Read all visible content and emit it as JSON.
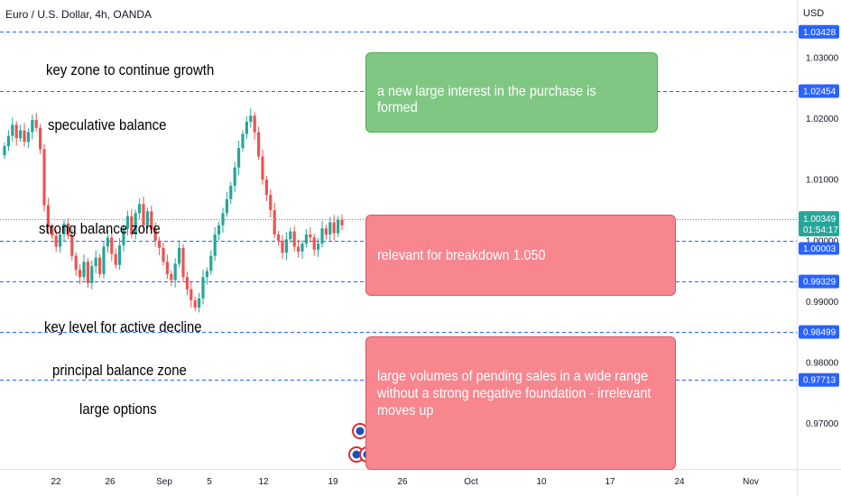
{
  "header": {
    "symbol_title": "Euro / U.S. Dollar, 4h, OANDA",
    "currency": "USD"
  },
  "colors": {
    "up": "#26a69a",
    "down": "#ef5350",
    "level_line": "#2962ff",
    "level_tag_bg": "#2962ff",
    "price_tag_bg": "#26a69a",
    "axis_text": "#131722",
    "green_note": "#81c784",
    "red_note": "#f7868f"
  },
  "chart_data": {
    "type": "candlestick",
    "x_tick_labels": [
      "22",
      "26",
      "Sep",
      "5",
      "12",
      "19",
      "26",
      "Oct",
      "10",
      "17",
      "24",
      "Nov"
    ],
    "y_tick_labels": [
      "1.03000",
      "1.02000",
      "1.01000",
      "1.00000",
      "0.99000",
      "0.98000",
      "0.97000"
    ],
    "ylim": [
      0.9625,
      1.0395
    ],
    "price_levels": [
      "1.03428",
      "1.02454",
      "0.99329",
      "0.98499",
      "0.97713"
    ],
    "current_price": "1.00349",
    "current_level": 1.00349,
    "countdown": "01:54:17",
    "support_price": "1.00003",
    "support_level": 1.00003,
    "annotations": [
      {
        "text": "key zone to continue growth",
        "price": 1.0305
      },
      {
        "text": "speculative balance",
        "price": 1.0212
      },
      {
        "text": "strong balance zone",
        "price": 1.0066
      },
      {
        "text": "key level for active decline",
        "price": 0.9886
      },
      {
        "text": "principal balance zone",
        "price": 0.9814
      },
      {
        "text": "large options",
        "price": 0.9747
      }
    ],
    "notes": [
      {
        "text": "a new large interest in the purchase is formed",
        "tone": "green"
      },
      {
        "text": "relevant for breakdown 1.050",
        "tone": "red"
      },
      {
        "text": "large volumes of pending sales in a wide range without a strong negative foundation - irrelevant moves up",
        "tone": "red"
      }
    ],
    "closes": [
      1.0155,
      1.0172,
      1.019,
      1.0168,
      1.0181,
      1.0162,
      1.0178,
      1.0198,
      1.0185,
      1.015,
      1.0058,
      1.0022,
      1.0008,
      0.999,
      1.001,
      1.0028,
      1.0008,
      0.9975,
      0.9952,
      0.994,
      0.9965,
      0.993,
      0.9958,
      0.9972,
      0.9945,
      0.999,
      1.0005,
      0.9978,
      0.996,
      0.9992,
      1.002,
      1.004,
      1.001,
      1.0045,
      1.006,
      1.0025,
      1.0048,
      1.0018,
      1.0,
      0.9988,
      0.9965,
      0.9945,
      0.9935,
      0.9962,
      0.9988,
      0.994,
      0.992,
      0.9902,
      0.989,
      0.9905,
      0.994,
      0.995,
      0.9975,
      1.001,
      1.0025,
      1.0045,
      1.0068,
      1.009,
      1.012,
      1.0152,
      1.0175,
      1.0195,
      1.0205,
      1.0178,
      1.0138,
      1.01,
      1.0075,
      1.005,
      1.001,
      1.0,
      0.998,
      1.0002,
      1.0015,
      0.999,
      0.9982,
      0.9995,
      1.001,
      1.0005,
      0.9985,
      0.9995,
      1.002,
      1.001,
      1.003,
      1.0012,
      1.0034,
      1.0025
    ]
  },
  "price_axis": {
    "tags": [
      {
        "text": "1.03428",
        "price": 1.03428
      },
      {
        "text": "1.02454",
        "price": 1.02454
      },
      {
        "text": "0.99329",
        "price": 0.99329
      },
      {
        "text": "0.98499",
        "price": 0.98499
      },
      {
        "text": "0.97713",
        "price": 0.97713
      }
    ]
  },
  "event_markers": [
    "us-flag-icon",
    "us-flag-icon",
    "us-flag-icon",
    "eu-flag-icon",
    "eu-flag-icon",
    "us-flag-icon"
  ]
}
